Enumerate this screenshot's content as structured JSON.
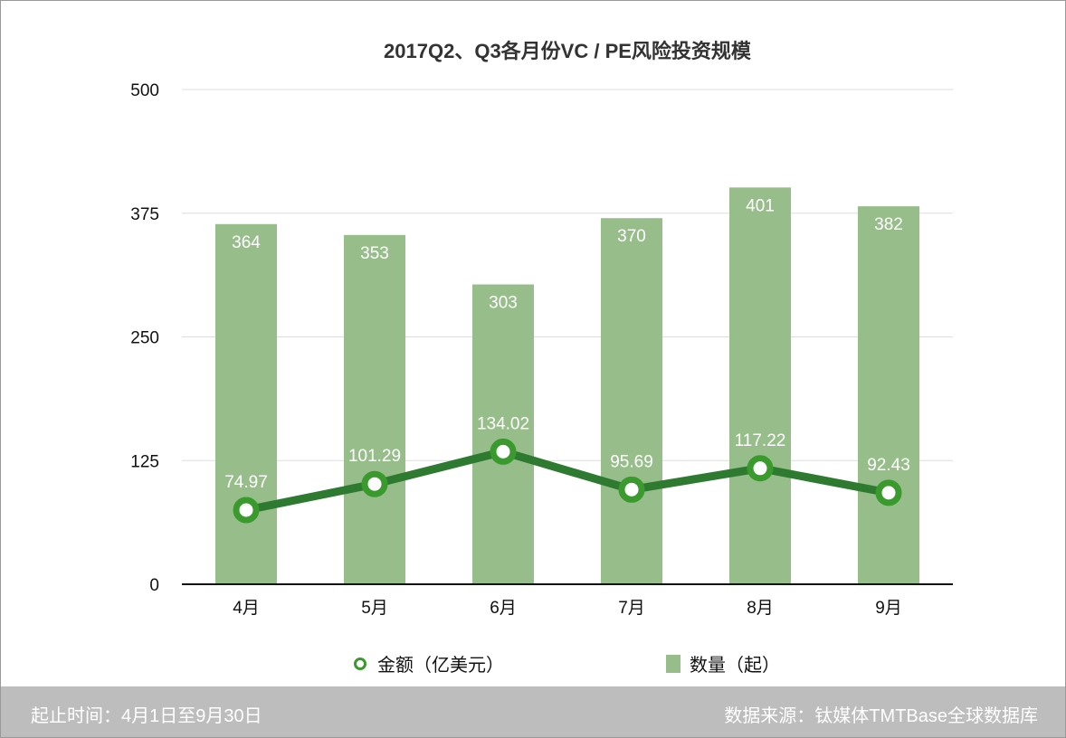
{
  "chart_data": {
    "type": "bar+line",
    "title": "2017Q2、Q3各月份VC / PE风险投资规模",
    "categories": [
      "4月",
      "5月",
      "6月",
      "7月",
      "8月",
      "9月"
    ],
    "series": [
      {
        "name": "数量（起）",
        "type": "bar",
        "values": [
          364,
          353,
          303,
          370,
          401,
          382
        ],
        "labels": [
          "364",
          "353",
          "303",
          "370",
          "401",
          "382"
        ],
        "color": "#97bd8a"
      },
      {
        "name": "金额（亿美元）",
        "type": "line",
        "values": [
          74.97,
          101.29,
          134.02,
          95.69,
          117.22,
          92.43
        ],
        "labels": [
          "74.97",
          "101.29",
          "134.02",
          "95.69",
          "117.22",
          "92.43"
        ],
        "color": "#2e7a30"
      }
    ],
    "yticks": [
      "0",
      "125",
      "250",
      "375",
      "500"
    ],
    "ylim": [
      0,
      500
    ],
    "grid": true,
    "legend": "bottom"
  },
  "footer": {
    "left": "起止时间：4月1日至9月30日",
    "right": "数据来源：钛媒体TMTBase全球数据库"
  }
}
